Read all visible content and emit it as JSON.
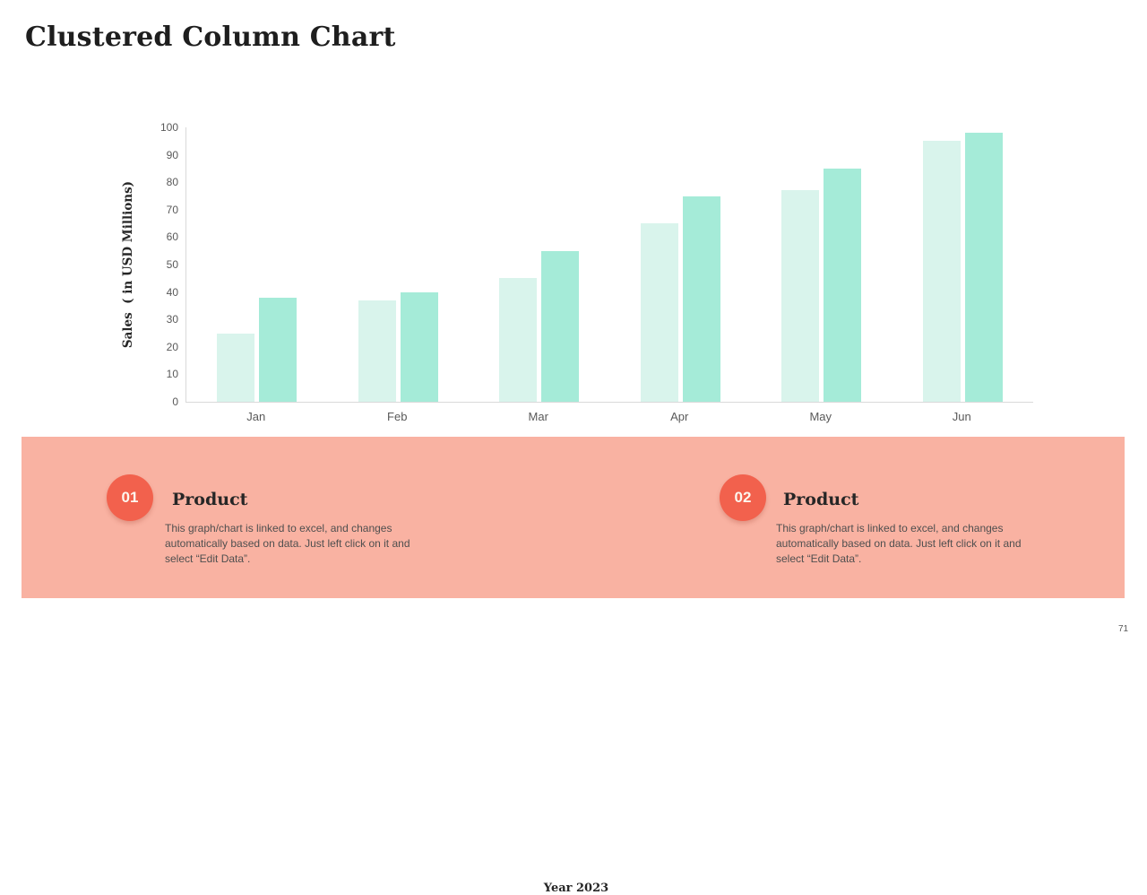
{
  "title": "Clustered Column Chart",
  "page_number": "71",
  "colors": {
    "panel_bg": "#F9B2A2",
    "badge_bg": "#F2614D",
    "series1": "#D9F4EC",
    "series2": "#A5EBD8",
    "axis_line": "#d9d9d9",
    "tick_text": "#595959"
  },
  "chart_data": {
    "type": "bar",
    "title": "",
    "xlabel": "Year 2023",
    "ylabel": "Sales  ( in USD Millions)",
    "categories": [
      "Jan",
      "Feb",
      "Mar",
      "Apr",
      "May",
      "Jun"
    ],
    "series": [
      {
        "name": "Product 01",
        "color": "#D9F4EC",
        "values": [
          25,
          37,
          45,
          65,
          77,
          95
        ]
      },
      {
        "name": "Product 02",
        "color": "#A5EBD8",
        "values": [
          38,
          40,
          55,
          75,
          85,
          98
        ]
      }
    ],
    "ylim": [
      0,
      100
    ],
    "ytick_step": 10,
    "grid": false,
    "legend": "none"
  },
  "callouts": [
    {
      "number": "01",
      "heading": "Product",
      "body": "This graph/chart is linked to excel, and changes automatically based on data. Just left click on it and select “Edit Data”."
    },
    {
      "number": "02",
      "heading": "Product",
      "body": "This graph/chart is linked to excel, and changes automatically based on data. Just left click on it and select “Edit Data”."
    }
  ]
}
